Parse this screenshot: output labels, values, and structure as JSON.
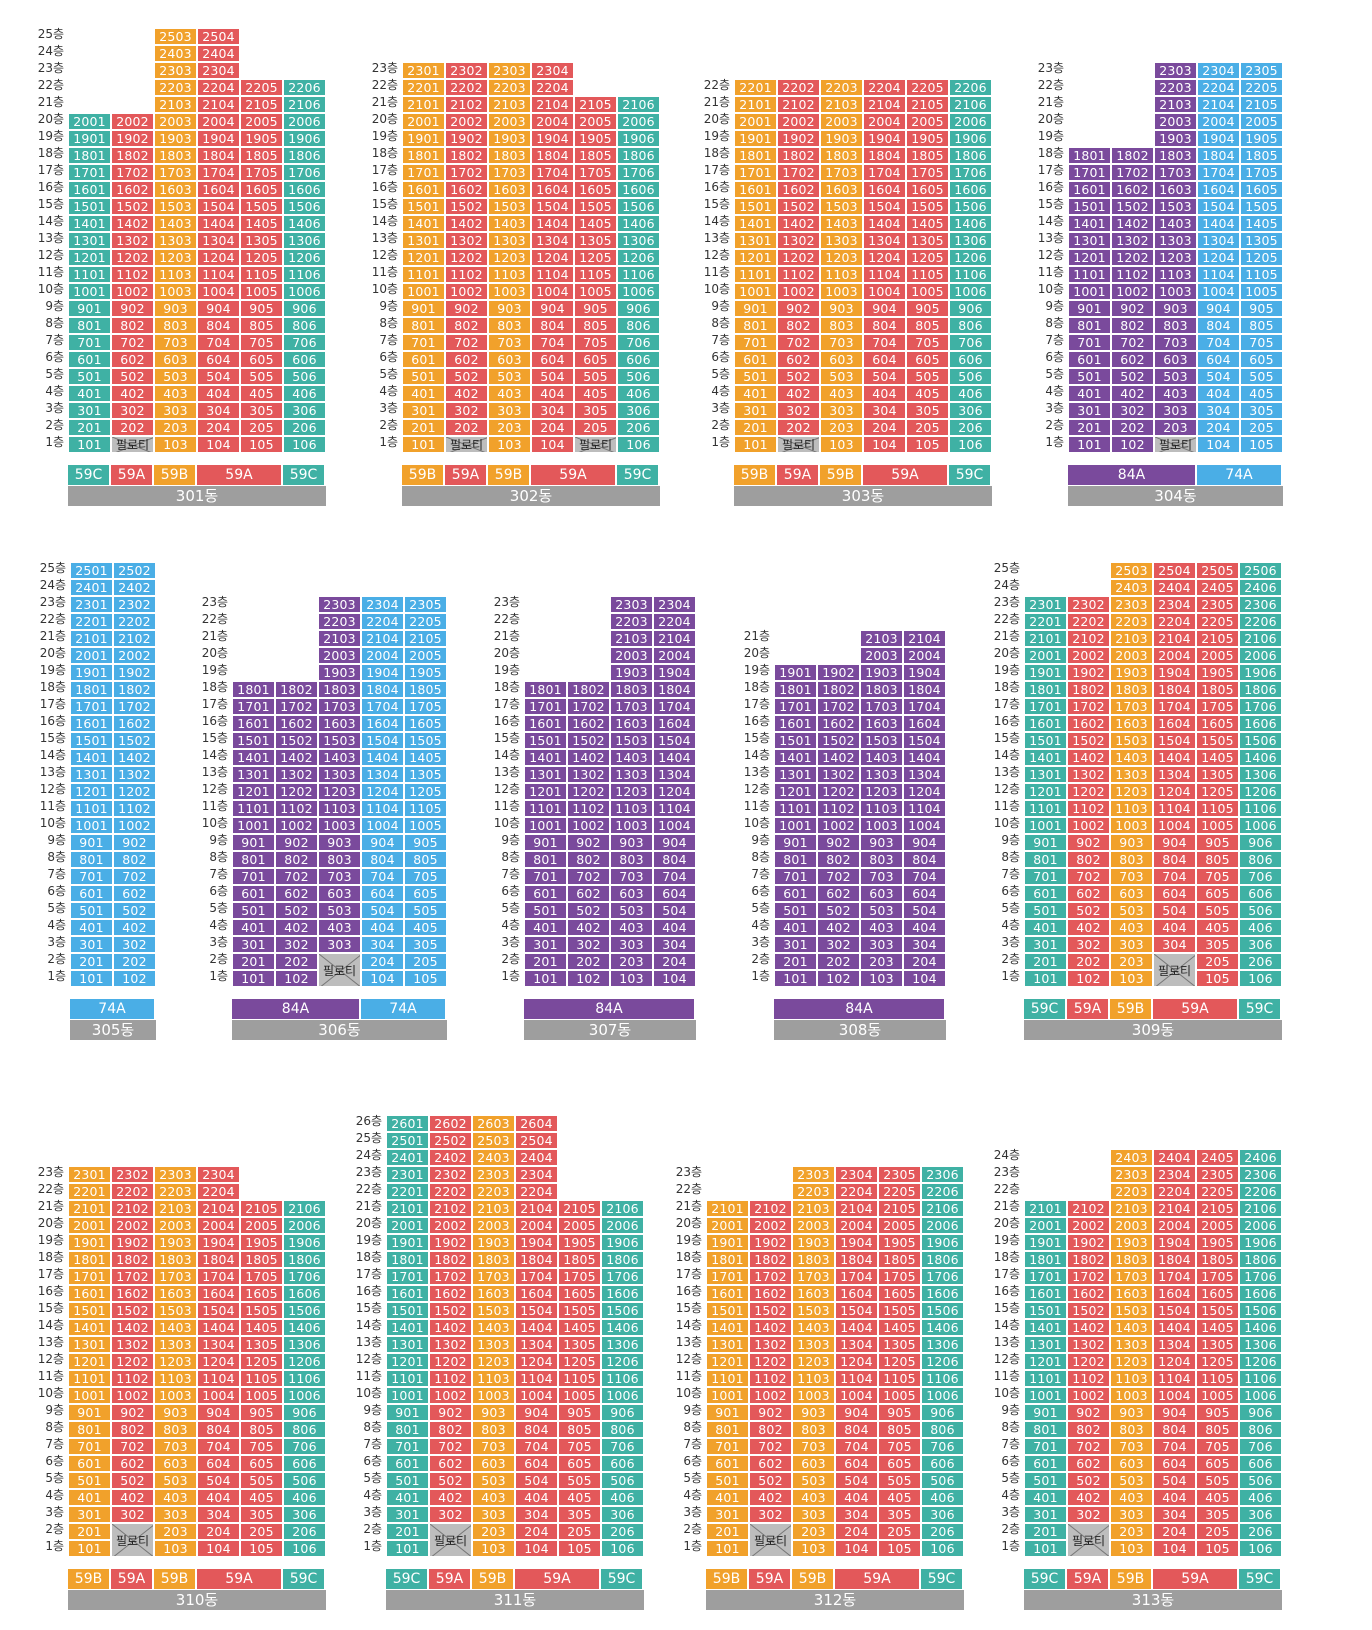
{
  "colors": {
    "59A": "#e3585a",
    "59B": "#f1a12b",
    "59C": "#3fb1a4",
    "74A": "#4aaee6",
    "84A": "#7a4a9c",
    "name_bar": "#9e9e9e",
    "piloti": "#bdbdbd"
  },
  "floor_suffix": "층",
  "piloti_label": "필로티",
  "buildings": [
    {
      "name": "301동",
      "columns": [
        {
          "unit": 1,
          "type": "59C",
          "bottom": 1,
          "top": 20,
          "piloti": []
        },
        {
          "unit": 2,
          "type": "59A",
          "bottom": 1,
          "top": 20,
          "piloti": [
            1
          ]
        },
        {
          "unit": 3,
          "type": "59B",
          "bottom": 1,
          "top": 25,
          "piloti": []
        },
        {
          "unit": 4,
          "type": "59A",
          "bottom": 1,
          "top": 25,
          "piloti": []
        },
        {
          "unit": 5,
          "type": "59A",
          "bottom": 1,
          "top": 22,
          "piloti": []
        },
        {
          "unit": 6,
          "type": "59C",
          "bottom": 1,
          "top": 22,
          "piloti": []
        }
      ],
      "type_groups": [
        {
          "label": "59C",
          "span": 1
        },
        {
          "label": "59A",
          "span": 1
        },
        {
          "label": "59B",
          "span": 1
        },
        {
          "label": "59A",
          "span": 2
        },
        {
          "label": "59C",
          "span": 1
        }
      ]
    },
    {
      "name": "302동",
      "columns": [
        {
          "unit": 1,
          "type": "59B",
          "bottom": 1,
          "top": 23,
          "piloti": []
        },
        {
          "unit": 2,
          "type": "59A",
          "bottom": 1,
          "top": 23,
          "piloti": [
            1
          ]
        },
        {
          "unit": 3,
          "type": "59B",
          "bottom": 1,
          "top": 23,
          "piloti": []
        },
        {
          "unit": 4,
          "type": "59A",
          "bottom": 1,
          "top": 23,
          "piloti": []
        },
        {
          "unit": 5,
          "type": "59A",
          "bottom": 1,
          "top": 21,
          "piloti": [
            1
          ]
        },
        {
          "unit": 6,
          "type": "59C",
          "bottom": 1,
          "top": 21,
          "piloti": []
        }
      ],
      "type_groups": [
        {
          "label": "59B",
          "span": 1
        },
        {
          "label": "59A",
          "span": 1
        },
        {
          "label": "59B",
          "span": 1
        },
        {
          "label": "59A",
          "span": 2
        },
        {
          "label": "59C",
          "span": 1
        }
      ]
    },
    {
      "name": "303동",
      "columns": [
        {
          "unit": 1,
          "type": "59B",
          "bottom": 1,
          "top": 22,
          "piloti": []
        },
        {
          "unit": 2,
          "type": "59A",
          "bottom": 1,
          "top": 22,
          "piloti": [
            1
          ]
        },
        {
          "unit": 3,
          "type": "59B",
          "bottom": 1,
          "top": 22,
          "piloti": []
        },
        {
          "unit": 4,
          "type": "59A",
          "bottom": 1,
          "top": 22,
          "piloti": []
        },
        {
          "unit": 5,
          "type": "59A",
          "bottom": 1,
          "top": 22,
          "piloti": []
        },
        {
          "unit": 6,
          "type": "59C",
          "bottom": 1,
          "top": 22,
          "piloti": []
        }
      ],
      "type_groups": [
        {
          "label": "59B",
          "span": 1
        },
        {
          "label": "59A",
          "span": 1
        },
        {
          "label": "59B",
          "span": 1
        },
        {
          "label": "59A",
          "span": 2
        },
        {
          "label": "59C",
          "span": 1
        }
      ]
    },
    {
      "name": "304동",
      "columns": [
        {
          "unit": 1,
          "type": "84A",
          "bottom": 1,
          "top": 18,
          "piloti": []
        },
        {
          "unit": 2,
          "type": "84A",
          "bottom": 1,
          "top": 18,
          "piloti": []
        },
        {
          "unit": 3,
          "type": "84A",
          "bottom": 1,
          "top": 23,
          "piloti": [
            1
          ]
        },
        {
          "unit": 4,
          "type": "74A",
          "bottom": 1,
          "top": 23,
          "piloti": []
        },
        {
          "unit": 5,
          "type": "74A",
          "bottom": 1,
          "top": 23,
          "piloti": []
        }
      ],
      "type_groups": [
        {
          "label": "84A",
          "span": 3
        },
        {
          "label": "74A",
          "span": 2
        }
      ]
    },
    {
      "name": "305동",
      "columns": [
        {
          "unit": 1,
          "type": "74A",
          "bottom": 1,
          "top": 25,
          "piloti": []
        },
        {
          "unit": 2,
          "type": "74A",
          "bottom": 1,
          "top": 25,
          "piloti": []
        }
      ],
      "type_groups": [
        {
          "label": "74A",
          "span": 2
        }
      ]
    },
    {
      "name": "306동",
      "columns": [
        {
          "unit": 1,
          "type": "84A",
          "bottom": 1,
          "top": 18,
          "piloti": []
        },
        {
          "unit": 2,
          "type": "84A",
          "bottom": 1,
          "top": 18,
          "piloti": []
        },
        {
          "unit": 3,
          "type": "84A",
          "bottom": 1,
          "top": 23,
          "piloti": [
            1,
            2
          ]
        },
        {
          "unit": 4,
          "type": "74A",
          "bottom": 1,
          "top": 23,
          "piloti": []
        },
        {
          "unit": 5,
          "type": "74A",
          "bottom": 1,
          "top": 23,
          "piloti": []
        }
      ],
      "type_groups": [
        {
          "label": "84A",
          "span": 3
        },
        {
          "label": "74A",
          "span": 2
        }
      ]
    },
    {
      "name": "307동",
      "columns": [
        {
          "unit": 1,
          "type": "84A",
          "bottom": 1,
          "top": 18,
          "piloti": []
        },
        {
          "unit": 2,
          "type": "84A",
          "bottom": 1,
          "top": 18,
          "piloti": []
        },
        {
          "unit": 3,
          "type": "84A",
          "bottom": 1,
          "top": 23,
          "piloti": []
        },
        {
          "unit": 4,
          "type": "84A",
          "bottom": 1,
          "top": 23,
          "piloti": []
        }
      ],
      "type_groups": [
        {
          "label": "84A",
          "span": 4
        }
      ]
    },
    {
      "name": "308동",
      "columns": [
        {
          "unit": 1,
          "type": "84A",
          "bottom": 1,
          "top": 19,
          "piloti": []
        },
        {
          "unit": 2,
          "type": "84A",
          "bottom": 1,
          "top": 19,
          "piloti": []
        },
        {
          "unit": 3,
          "type": "84A",
          "bottom": 1,
          "top": 21,
          "piloti": []
        },
        {
          "unit": 4,
          "type": "84A",
          "bottom": 1,
          "top": 21,
          "piloti": []
        }
      ],
      "type_groups": [
        {
          "label": "84A",
          "span": 4
        }
      ]
    },
    {
      "name": "309동",
      "columns": [
        {
          "unit": 1,
          "type": "59C",
          "bottom": 1,
          "top": 23,
          "piloti": []
        },
        {
          "unit": 2,
          "type": "59A",
          "bottom": 1,
          "top": 23,
          "piloti": []
        },
        {
          "unit": 3,
          "type": "59B",
          "bottom": 1,
          "top": 25,
          "piloti": []
        },
        {
          "unit": 4,
          "type": "59A",
          "bottom": 1,
          "top": 25,
          "piloti": [
            1,
            2
          ]
        },
        {
          "unit": 5,
          "type": "59A",
          "bottom": 1,
          "top": 25,
          "piloti": []
        },
        {
          "unit": 6,
          "type": "59C",
          "bottom": 1,
          "top": 25,
          "piloti": []
        }
      ],
      "type_groups": [
        {
          "label": "59C",
          "span": 1
        },
        {
          "label": "59A",
          "span": 1
        },
        {
          "label": "59B",
          "span": 1
        },
        {
          "label": "59A",
          "span": 2
        },
        {
          "label": "59C",
          "span": 1
        }
      ]
    },
    {
      "name": "310동",
      "columns": [
        {
          "unit": 1,
          "type": "59B",
          "bottom": 1,
          "top": 23,
          "piloti": []
        },
        {
          "unit": 2,
          "type": "59A",
          "bottom": 1,
          "top": 23,
          "piloti": [
            1,
            2
          ]
        },
        {
          "unit": 3,
          "type": "59B",
          "bottom": 1,
          "top": 23,
          "piloti": []
        },
        {
          "unit": 4,
          "type": "59A",
          "bottom": 1,
          "top": 23,
          "piloti": []
        },
        {
          "unit": 5,
          "type": "59A",
          "bottom": 1,
          "top": 21,
          "piloti": []
        },
        {
          "unit": 6,
          "type": "59C",
          "bottom": 1,
          "top": 21,
          "piloti": []
        }
      ],
      "type_groups": [
        {
          "label": "59B",
          "span": 1
        },
        {
          "label": "59A",
          "span": 1
        },
        {
          "label": "59B",
          "span": 1
        },
        {
          "label": "59A",
          "span": 2
        },
        {
          "label": "59C",
          "span": 1
        }
      ]
    },
    {
      "name": "311동",
      "columns": [
        {
          "unit": 1,
          "type": "59C",
          "bottom": 1,
          "top": 26,
          "piloti": []
        },
        {
          "unit": 2,
          "type": "59A",
          "bottom": 1,
          "top": 26,
          "piloti": [
            1,
            2
          ]
        },
        {
          "unit": 3,
          "type": "59B",
          "bottom": 1,
          "top": 26,
          "piloti": []
        },
        {
          "unit": 4,
          "type": "59A",
          "bottom": 1,
          "top": 26,
          "piloti": []
        },
        {
          "unit": 5,
          "type": "59A",
          "bottom": 1,
          "top": 21,
          "piloti": []
        },
        {
          "unit": 6,
          "type": "59C",
          "bottom": 1,
          "top": 21,
          "piloti": []
        }
      ],
      "type_groups": [
        {
          "label": "59C",
          "span": 1
        },
        {
          "label": "59A",
          "span": 1
        },
        {
          "label": "59B",
          "span": 1
        },
        {
          "label": "59A",
          "span": 2
        },
        {
          "label": "59C",
          "span": 1
        }
      ]
    },
    {
      "name": "312동",
      "columns": [
        {
          "unit": 1,
          "type": "59B",
          "bottom": 1,
          "top": 21,
          "piloti": []
        },
        {
          "unit": 2,
          "type": "59A",
          "bottom": 1,
          "top": 21,
          "piloti": [
            1,
            2
          ]
        },
        {
          "unit": 3,
          "type": "59B",
          "bottom": 1,
          "top": 23,
          "piloti": []
        },
        {
          "unit": 4,
          "type": "59A",
          "bottom": 1,
          "top": 23,
          "piloti": []
        },
        {
          "unit": 5,
          "type": "59A",
          "bottom": 1,
          "top": 23,
          "piloti": []
        },
        {
          "unit": 6,
          "type": "59C",
          "bottom": 1,
          "top": 23,
          "piloti": []
        }
      ],
      "type_groups": [
        {
          "label": "59B",
          "span": 1
        },
        {
          "label": "59A",
          "span": 1
        },
        {
          "label": "59B",
          "span": 1
        },
        {
          "label": "59A",
          "span": 2
        },
        {
          "label": "59C",
          "span": 1
        }
      ]
    },
    {
      "name": "313동",
      "columns": [
        {
          "unit": 1,
          "type": "59C",
          "bottom": 1,
          "top": 21,
          "piloti": []
        },
        {
          "unit": 2,
          "type": "59A",
          "bottom": 1,
          "top": 21,
          "piloti": [
            1,
            2
          ]
        },
        {
          "unit": 3,
          "type": "59B",
          "bottom": 1,
          "top": 24,
          "piloti": []
        },
        {
          "unit": 4,
          "type": "59A",
          "bottom": 1,
          "top": 24,
          "piloti": []
        },
        {
          "unit": 5,
          "type": "59A",
          "bottom": 1,
          "top": 24,
          "piloti": []
        },
        {
          "unit": 6,
          "type": "59C",
          "bottom": 1,
          "top": 24,
          "piloti": []
        }
      ],
      "type_groups": [
        {
          "label": "59C",
          "span": 1
        },
        {
          "label": "59A",
          "span": 1
        },
        {
          "label": "59B",
          "span": 1
        },
        {
          "label": "59A",
          "span": 2
        },
        {
          "label": "59C",
          "span": 1
        }
      ]
    }
  ]
}
